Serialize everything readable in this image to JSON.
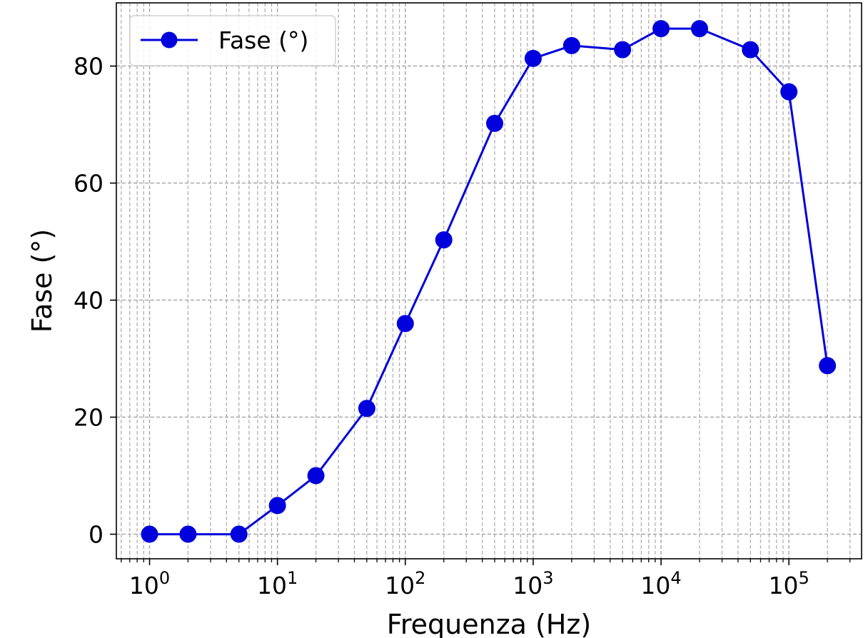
{
  "chart_data": {
    "type": "line",
    "title": "",
    "xlabel": "Frequenza (Hz)",
    "ylabel": "Fase (°)",
    "xscale": "log",
    "xlim": [
      0.55,
      370000
    ],
    "ylim": [
      -4.2,
      90.8
    ],
    "xticks": [
      {
        "value": 1,
        "base": "10",
        "exp": "0"
      },
      {
        "value": 10,
        "base": "10",
        "exp": "1"
      },
      {
        "value": 100,
        "base": "10",
        "exp": "2"
      },
      {
        "value": 1000,
        "base": "10",
        "exp": "3"
      },
      {
        "value": 10000,
        "base": "10",
        "exp": "4"
      },
      {
        "value": 100000,
        "base": "10",
        "exp": "5"
      }
    ],
    "yticks": [
      {
        "value": 0,
        "label": "0"
      },
      {
        "value": 20,
        "label": "20"
      },
      {
        "value": 40,
        "label": "40"
      },
      {
        "value": 60,
        "label": "60"
      },
      {
        "value": 80,
        "label": "80"
      }
    ],
    "grid": true,
    "legend": "top-left",
    "series": [
      {
        "name": "Fase (°)",
        "color": "#0000dd",
        "marker": "circle",
        "x": [
          1,
          2,
          5,
          10,
          20,
          50,
          100,
          200,
          500,
          1000,
          2000,
          5000,
          10000,
          20000,
          50000,
          100000,
          200000
        ],
        "y": [
          0.0,
          0.0,
          0.0,
          4.9,
          10.0,
          21.5,
          36.0,
          50.3,
          70.2,
          81.3,
          83.5,
          82.8,
          86.4,
          86.4,
          82.8,
          75.6,
          28.8
        ]
      }
    ]
  }
}
